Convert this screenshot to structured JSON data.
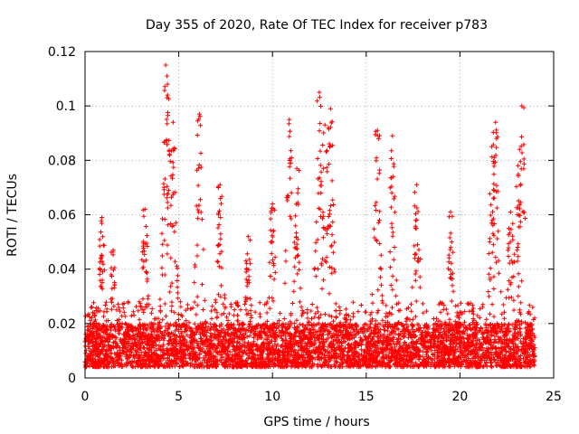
{
  "chart_data": {
    "type": "scatter",
    "title": "Day 355 of 2020, Rate Of TEC Index for receiver p783",
    "xlabel": "GPS time / hours",
    "ylabel": "ROTI / TECUs",
    "xlim": [
      0,
      25
    ],
    "ylim": [
      0,
      0.12
    ],
    "x_ticks": [
      "0",
      "5",
      "10",
      "15",
      "20",
      "25"
    ],
    "y_ticks": [
      "0",
      "0.02",
      "0.04",
      "0.06",
      "0.08",
      "0.1",
      "0.12"
    ],
    "grid": true,
    "marker": "+",
    "color": "#ff0000",
    "x_range_of_data": [
      0,
      24
    ],
    "baseline_band": [
      0.004,
      0.02
    ],
    "peaks": [
      {
        "x": 0.9,
        "y": 0.059
      },
      {
        "x": 1.5,
        "y": 0.047
      },
      {
        "x": 3.2,
        "y": 0.062
      },
      {
        "x": 4.3,
        "y": 0.115
      },
      {
        "x": 4.4,
        "y": 0.108
      },
      {
        "x": 4.7,
        "y": 0.094
      },
      {
        "x": 6.1,
        "y": 0.097
      },
      {
        "x": 7.2,
        "y": 0.071
      },
      {
        "x": 8.7,
        "y": 0.052
      },
      {
        "x": 10.0,
        "y": 0.064
      },
      {
        "x": 10.9,
        "y": 0.095
      },
      {
        "x": 11.3,
        "y": 0.077
      },
      {
        "x": 12.5,
        "y": 0.105
      },
      {
        "x": 12.8,
        "y": 0.093
      },
      {
        "x": 13.1,
        "y": 0.099
      },
      {
        "x": 15.6,
        "y": 0.091
      },
      {
        "x": 16.4,
        "y": 0.089
      },
      {
        "x": 17.7,
        "y": 0.071
      },
      {
        "x": 19.5,
        "y": 0.061
      },
      {
        "x": 21.7,
        "y": 0.085
      },
      {
        "x": 21.9,
        "y": 0.094
      },
      {
        "x": 22.7,
        "y": 0.061
      },
      {
        "x": 23.1,
        "y": 0.078
      },
      {
        "x": 23.3,
        "y": 0.1
      }
    ]
  }
}
